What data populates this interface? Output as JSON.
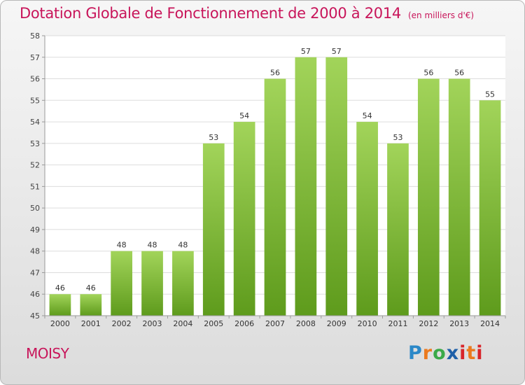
{
  "header": {
    "title": "Dotation Globale de Fonctionnement de 2000 à 2014",
    "unit": "(en milliers d'€)"
  },
  "footer": {
    "commune": "MOISY",
    "logo": "Proxiti"
  },
  "colors": {
    "title": "#c8155a",
    "bar_top": "#a2d45a",
    "bar_bottom": "#5e9b1c",
    "plot_background": "#ffffff",
    "grid": "#dddddd"
  },
  "chart_data": {
    "type": "bar",
    "categories": [
      "2000",
      "2001",
      "2002",
      "2003",
      "2004",
      "2005",
      "2006",
      "2007",
      "2008",
      "2009",
      "2010",
      "2011",
      "2012",
      "2013",
      "2014"
    ],
    "values": [
      46,
      46,
      48,
      48,
      48,
      53,
      54,
      56,
      57,
      57,
      54,
      53,
      56,
      56,
      55
    ],
    "title": "Dotation Globale de Fonctionnement de 2000 à 2014",
    "subtitle": "(en milliers d'€)",
    "xlabel": "",
    "ylabel": "",
    "ylim": [
      45,
      58
    ],
    "yticks": [
      45,
      46,
      47,
      48,
      49,
      50,
      51,
      52,
      53,
      54,
      55,
      56,
      57,
      58
    ],
    "grid": true,
    "legend": "none"
  }
}
